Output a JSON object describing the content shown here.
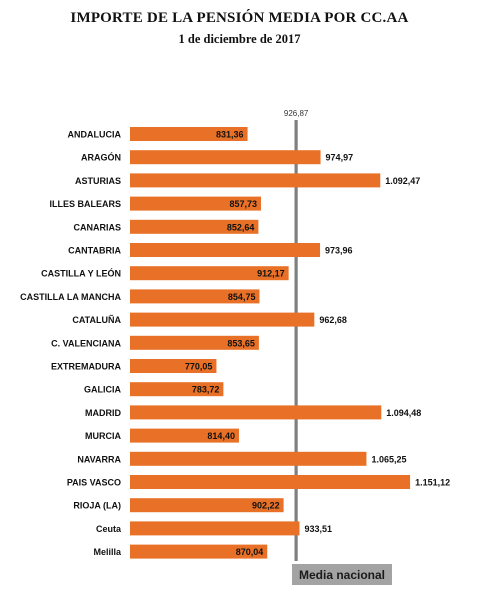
{
  "chart_data": {
    "type": "bar",
    "orientation": "horizontal",
    "title": "IMPORTE DE LA PENSIÓN MEDIA POR CC.AA",
    "subtitle": "1 de diciembre de 2017",
    "categories": [
      "ANDALUCIA",
      "ARAGÓN",
      "ASTURIAS",
      "ILLES BALEARS",
      "CANARIAS",
      "CANTABRIA",
      "CASTILLA Y LEÓN",
      "CASTILLA LA MANCHA",
      "CATALUÑA",
      "C. VALENCIANA",
      "EXTREMADURA",
      "GALICIA",
      "MADRID",
      "MURCIA",
      "NAVARRA",
      "PAIS VASCO",
      "RIOJA (LA)",
      "Ceuta",
      "Melilla"
    ],
    "values": [
      831.36,
      974.97,
      1092.47,
      857.73,
      852.64,
      973.96,
      912.17,
      854.75,
      962.68,
      853.65,
      770.05,
      783.72,
      1094.48,
      814.4,
      1065.25,
      1151.12,
      902.22,
      933.51,
      870.04
    ],
    "value_labels": [
      "831,36",
      "974,97",
      "1.092,47",
      "857,73",
      "852,64",
      "973,96",
      "912,17",
      "854,75",
      "962,68",
      "853,65",
      "770,05",
      "783,72",
      "1.094,48",
      "814,40",
      "1.065,25",
      "1.151,12",
      "902,22",
      "933,51",
      "870,04"
    ],
    "reference_line": {
      "value": 926.87,
      "label": "926,87",
      "name": "Media nacional"
    },
    "xlim": [
      600,
      1210
    ],
    "bar_color": "#e87127",
    "reference_color": "#7f7f7f"
  }
}
